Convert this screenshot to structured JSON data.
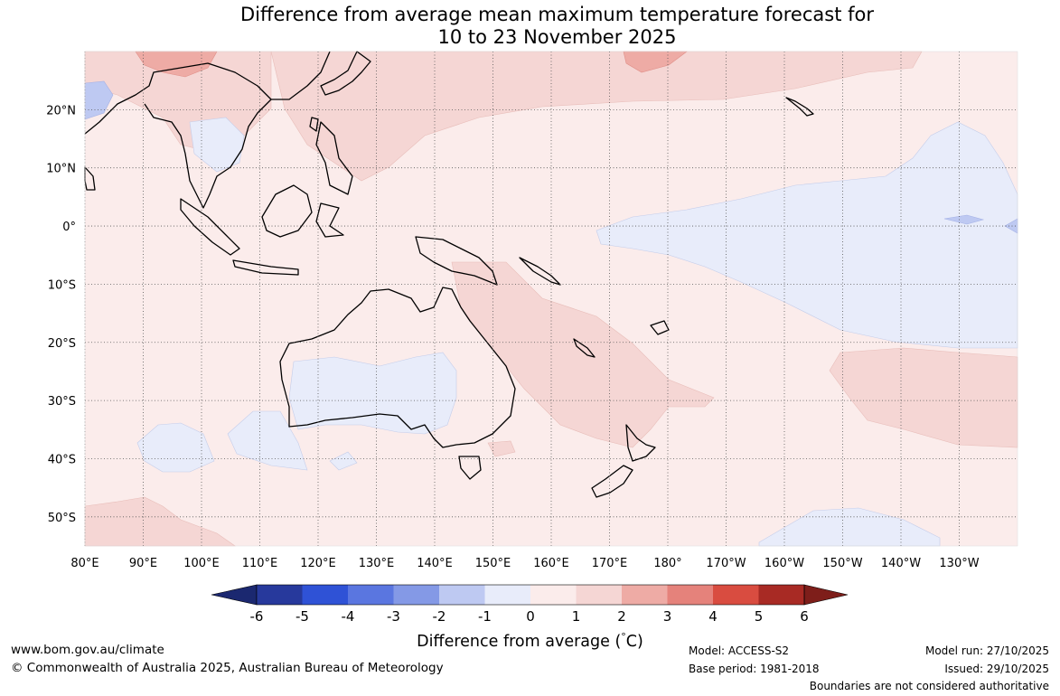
{
  "title": {
    "line1": "Difference from average mean maximum temperature forecast for",
    "line2": "10 to 23 November 2025"
  },
  "map": {
    "lon_labels": [
      "80°E",
      "90°E",
      "100°E",
      "110°E",
      "120°E",
      "130°E",
      "140°E",
      "150°E",
      "160°E",
      "170°E",
      "180°",
      "170°W",
      "160°W",
      "150°W",
      "140°W",
      "130°W"
    ],
    "lat_labels": [
      "20°N",
      "10°N",
      "0°",
      "10°S",
      "20°S",
      "30°S",
      "40°S",
      "50°S"
    ],
    "lon_range": [
      80,
      240
    ],
    "lat_range": [
      -55,
      30
    ],
    "gridlines": true,
    "background_class": "0 to 1",
    "background_color": "#fbeceb"
  },
  "colorbar": {
    "tick_labels": [
      "-6",
      "-5",
      "-4",
      "-3",
      "-2",
      "-1",
      "0",
      "1",
      "2",
      "3",
      "4",
      "5",
      "6"
    ],
    "colors": [
      "#27399c",
      "#2f52d6",
      "#5a76e0",
      "#8499e6",
      "#bec9f2",
      "#e8ecfa",
      "#fbeceb",
      "#f5d6d4",
      "#eeaba5",
      "#e5827b",
      "#d94c40",
      "#a82a24",
      "#7e1e1a"
    ],
    "label": "Difference from average ($^\\circ$C)",
    "label_text": "Difference from average (",
    "label_deg": "°",
    "label_unit": "C)"
  },
  "footer": {
    "website": "www.bom.gov.au/climate",
    "copyright": "© Commonwealth of Australia 2025, Australian Bureau of Meteorology",
    "model": "Model: ACCESS-S2",
    "base_period": "Base period: 1981-2018",
    "model_run": "Model run: 27/10/2025",
    "issued": "Issued: 29/10/2025",
    "disclaimer": "Boundaries are not considered authoritative"
  }
}
